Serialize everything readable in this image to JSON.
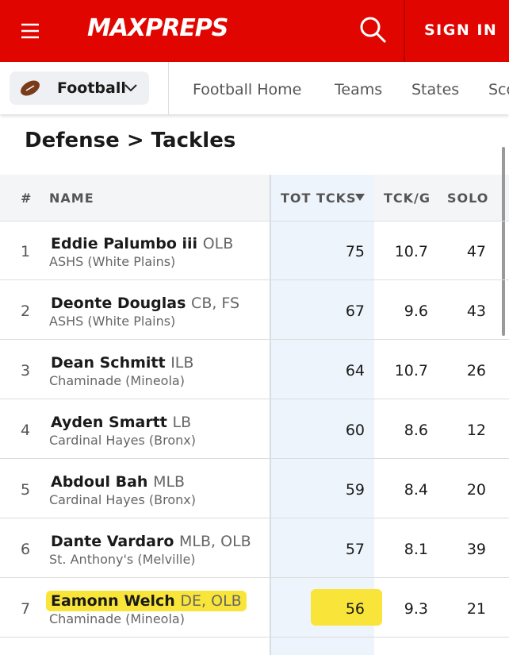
{
  "header": {
    "logo": "MAXPREPS",
    "sign_in": "SIGN IN"
  },
  "sport": "Football",
  "nav": [
    "Football Home",
    "Teams",
    "States",
    "Scores"
  ],
  "title": "Defense > Tackles",
  "table": {
    "columns": [
      "#",
      "NAME",
      "TOT TCKS",
      "TCK/G",
      "SOLO"
    ],
    "rows": [
      [
        1,
        "Eddie Palumbo iii",
        "OLB",
        "ASHS (White Plains)",
        75,
        10.7,
        47
      ],
      [
        2,
        "Deonte Douglas",
        "CB, FS",
        "ASHS (White Plains)",
        67,
        9.6,
        43
      ],
      [
        3,
        "Dean Schmitt",
        "ILB",
        "Chaminade (Mineola)",
        64,
        10.7,
        26
      ],
      [
        4,
        "Ayden Smartt",
        "LB",
        "Cardinal Hayes (Bronx)",
        60,
        8.6,
        12
      ],
      [
        5,
        "Abdoul Bah",
        "MLB",
        "Cardinal Hayes (Bronx)",
        59,
        8.4,
        20
      ],
      [
        6,
        "Dante Vardaro",
        "MLB, OLB",
        "St. Anthony's (Melville)",
        57,
        8.1,
        39
      ],
      [
        7,
        "Eamonn Welch",
        "DE, OLB",
        "Chaminade (Mineola)",
        56,
        9.3,
        21
      ]
    ]
  }
}
